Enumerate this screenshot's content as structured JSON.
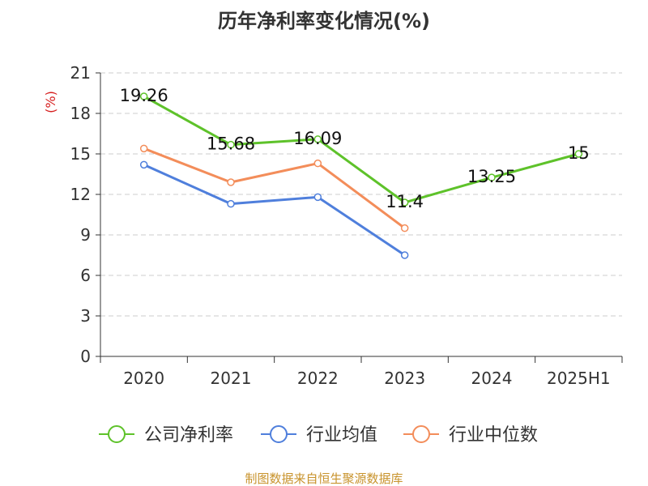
{
  "chart_data": {
    "type": "line",
    "title": "历年净利率变化情况(%)",
    "ylabel": "(%)",
    "xlabel": "",
    "categories": [
      "2020",
      "2021",
      "2022",
      "2023",
      "2024",
      "2025H1"
    ],
    "ylim": [
      0,
      21
    ],
    "yticks": [
      0,
      3,
      6,
      9,
      12,
      15,
      18,
      21
    ],
    "grid": true,
    "legend_position": "bottom",
    "series": [
      {
        "name": "公司净利率",
        "color": "#5ec22a",
        "values": [
          19.26,
          15.68,
          16.09,
          11.4,
          13.25,
          15
        ],
        "labels": [
          "19.26",
          "15.68",
          "16.09",
          "11.4",
          "13.25",
          "15"
        ]
      },
      {
        "name": "行业均值",
        "color": "#4f7fdc",
        "values": [
          14.2,
          11.3,
          11.8,
          7.5,
          null,
          null
        ]
      },
      {
        "name": "行业中位数",
        "color": "#f38d5a",
        "values": [
          15.4,
          12.9,
          14.3,
          9.5,
          null,
          null
        ]
      }
    ]
  },
  "source": "制图数据来自恒生聚源数据库"
}
